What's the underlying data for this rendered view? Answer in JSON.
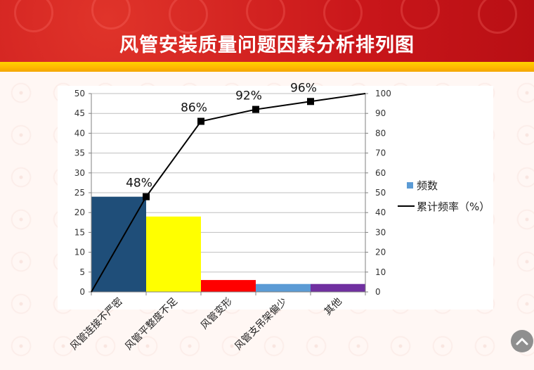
{
  "page": {
    "title": "风管安装质量问题因素分析排列图"
  },
  "legend": {
    "bar_label": "频数",
    "line_label": "累计频率（%）"
  },
  "colors": {
    "header_red": "#c9161a",
    "gold": "#ffc000",
    "bar_colors": [
      "#1f4e79",
      "#ffff00",
      "#ff0000",
      "#5b9bd5",
      "#7030a0"
    ],
    "line": "#000000"
  },
  "icons": {
    "scroll_top": "chevron-up-icon"
  },
  "chart_data": {
    "type": "bar",
    "title": "风管安装质量问题因素分析排列图",
    "categories": [
      "风管连接不严密",
      "风管平整度不足",
      "风管变形",
      "风管支吊架偏少",
      "其他"
    ],
    "series": [
      {
        "name": "频数",
        "type": "bar",
        "axis": "left",
        "values": [
          24,
          19,
          3,
          2,
          2
        ]
      },
      {
        "name": "累计频率（%）",
        "type": "line",
        "axis": "right",
        "x": [
          0,
          1,
          2,
          3,
          4,
          5
        ],
        "values": [
          0,
          48,
          86,
          92,
          96,
          100
        ]
      }
    ],
    "data_labels": [
      "48%",
      "86%",
      "92%",
      "96%"
    ],
    "y_left": {
      "min": 0,
      "max": 50,
      "ticks": [
        0,
        5,
        10,
        15,
        20,
        25,
        30,
        35,
        40,
        45,
        50
      ]
    },
    "y_right": {
      "min": 0,
      "max": 100,
      "ticks": [
        0,
        10,
        20,
        30,
        40,
        50,
        60,
        70,
        80,
        90,
        100
      ]
    },
    "grid": true,
    "legend_position": "right"
  }
}
